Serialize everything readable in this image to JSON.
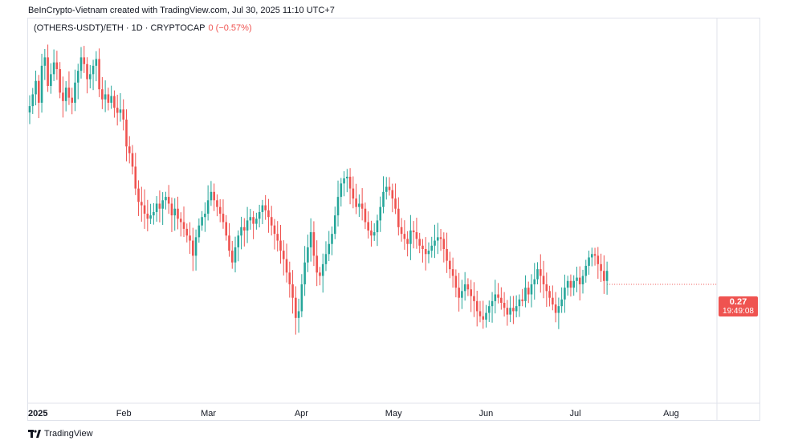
{
  "header": {
    "attribution": "BeInCrypto-Vietnam created with TradingView.com, Jul 30, 2025 11:10 UTC+7"
  },
  "legend": {
    "symbol": "(OTHERS-USDT)/ETH · 1D · CRYPTOCAP",
    "value": "0 (−0.57%)"
  },
  "price_tag": {
    "price": "0.27",
    "countdown": "19:49:08"
  },
  "footer": {
    "brand": "TradingView"
  },
  "colors": {
    "up": "#26a69a",
    "down": "#ef5350",
    "grid_border": "#e0e3eb"
  },
  "chart_data": {
    "type": "candlestick",
    "title": "(OTHERS-USDT)/ETH · 1D · CRYPTOCAP",
    "x_ticks": [
      {
        "label": "2025",
        "index": 0,
        "bold": true
      },
      {
        "label": "Feb",
        "index": 31
      },
      {
        "label": "Mar",
        "index": 59
      },
      {
        "label": "Apr",
        "index": 90
      },
      {
        "label": "May",
        "index": 120
      },
      {
        "label": "Jun",
        "index": 151
      },
      {
        "label": "Jul",
        "index": 181
      },
      {
        "label": "Aug",
        "index": 212
      }
    ],
    "ylim": [
      0.205,
      0.42
    ],
    "last_price": 0.27,
    "closes": [
      0.376,
      0.383,
      0.391,
      0.378,
      0.4,
      0.405,
      0.388,
      0.395,
      0.402,
      0.398,
      0.384,
      0.379,
      0.387,
      0.381,
      0.378,
      0.39,
      0.397,
      0.405,
      0.401,
      0.392,
      0.395,
      0.4,
      0.404,
      0.386,
      0.38,
      0.383,
      0.378,
      0.382,
      0.375,
      0.372,
      0.374,
      0.368,
      0.352,
      0.348,
      0.34,
      0.327,
      0.319,
      0.317,
      0.312,
      0.309,
      0.311,
      0.313,
      0.318,
      0.315,
      0.32,
      0.322,
      0.318,
      0.311,
      0.315,
      0.309,
      0.307,
      0.303,
      0.299,
      0.296,
      0.287,
      0.298,
      0.305,
      0.31,
      0.312,
      0.32,
      0.325,
      0.32,
      0.316,
      0.312,
      0.307,
      0.299,
      0.29,
      0.283,
      0.292,
      0.299,
      0.304,
      0.302,
      0.308,
      0.31,
      0.306,
      0.309,
      0.313,
      0.317,
      0.314,
      0.31,
      0.305,
      0.3,
      0.296,
      0.29,
      0.285,
      0.277,
      0.27,
      0.262,
      0.25,
      0.254,
      0.27,
      0.283,
      0.292,
      0.301,
      0.287,
      0.277,
      0.275,
      0.282,
      0.288,
      0.294,
      0.3,
      0.311,
      0.322,
      0.33,
      0.333,
      0.334,
      0.327,
      0.321,
      0.316,
      0.318,
      0.315,
      0.307,
      0.302,
      0.299,
      0.301,
      0.308,
      0.316,
      0.325,
      0.328,
      0.326,
      0.321,
      0.315,
      0.304,
      0.3,
      0.297,
      0.294,
      0.302,
      0.301,
      0.297,
      0.293,
      0.291,
      0.288,
      0.29,
      0.293,
      0.296,
      0.298,
      0.297,
      0.291,
      0.284,
      0.279,
      0.275,
      0.268,
      0.262,
      0.266,
      0.27,
      0.267,
      0.263,
      0.26,
      0.254,
      0.251,
      0.249,
      0.253,
      0.257,
      0.26,
      0.264,
      0.262,
      0.259,
      0.256,
      0.252,
      0.256,
      0.254,
      0.257,
      0.261,
      0.26,
      0.268,
      0.264,
      0.27,
      0.273,
      0.279,
      0.275,
      0.27,
      0.266,
      0.262,
      0.258,
      0.253,
      0.257,
      0.261,
      0.268,
      0.272,
      0.268,
      0.272,
      0.274,
      0.27,
      0.275,
      0.281,
      0.286,
      0.288,
      0.287,
      0.282,
      0.278,
      0.272,
      0.278
    ]
  }
}
